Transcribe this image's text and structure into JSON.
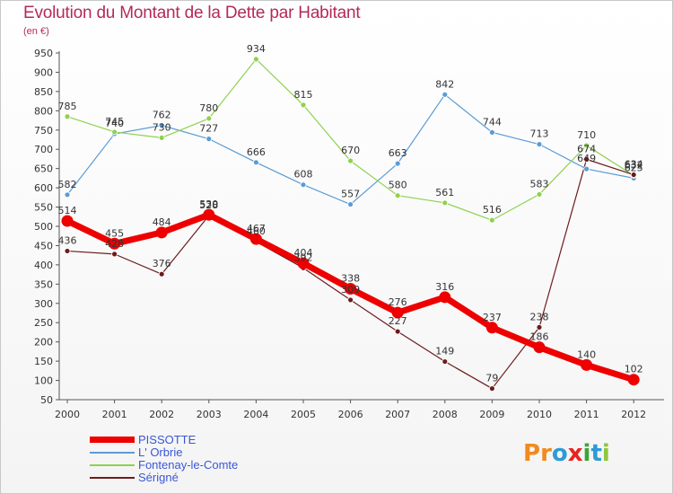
{
  "title": "Evolution du Montant de la Dette par Habitant",
  "unit": "(en €)",
  "logo_text": "Proxiti",
  "logo_letters": [
    {
      "ch": "P",
      "color": "#f28a1e"
    },
    {
      "ch": "r",
      "color": "#f28a1e"
    },
    {
      "ch": "o",
      "color": "#2e9bd6"
    },
    {
      "ch": "x",
      "color": "#e8231f"
    },
    {
      "ch": "i",
      "color": "#3aa63a"
    },
    {
      "ch": "t",
      "color": "#2e9bd6"
    },
    {
      "ch": "i",
      "color": "#8dc63f"
    }
  ],
  "chart_data": {
    "type": "line",
    "title": "Evolution du Montant de la Dette par Habitant",
    "ylabel": "(en €)",
    "xlabel": "",
    "categories": [
      "2000",
      "2001",
      "2002",
      "2003",
      "2004",
      "2005",
      "2006",
      "2007",
      "2008",
      "2009",
      "2010",
      "2011",
      "2012"
    ],
    "ylim": [
      50,
      950
    ],
    "yticks": [
      50,
      100,
      150,
      200,
      250,
      300,
      350,
      400,
      450,
      500,
      550,
      600,
      650,
      700,
      750,
      800,
      850,
      900,
      950
    ],
    "grid": false,
    "legend_position": "bottom-left",
    "series": [
      {
        "name": "PISSOTTE",
        "color": "#ee0000",
        "values": [
          514,
          455,
          484,
          530,
          467,
          404,
          338,
          276,
          316,
          237,
          186,
          140,
          102
        ],
        "labels": [
          "514",
          "455",
          "484",
          "530",
          "467",
          "404",
          "338",
          "276",
          "316",
          "237",
          "186",
          "140",
          "102"
        ]
      },
      {
        "name": "L' Orbrie",
        "color": "#5b9bd5",
        "values": [
          582,
          740,
          762,
          727,
          666,
          608,
          557,
          663,
          842,
          744,
          713,
          649,
          625
        ],
        "labels": [
          "582",
          "740",
          "762",
          "727",
          "666",
          "608",
          "557",
          "663",
          "842",
          "744",
          "713",
          "649",
          "625"
        ]
      },
      {
        "name": "Fontenay-le-Comte",
        "color": "#8fd14f",
        "values": [
          785,
          745,
          730,
          780,
          934,
          815,
          670,
          580,
          561,
          516,
          583,
          710,
          632
        ],
        "labels": [
          "785",
          "745",
          "730",
          "780",
          "934",
          "815",
          "670",
          "580",
          "561",
          "516",
          "583",
          "710",
          "632"
        ]
      },
      {
        "name": "Sérigné",
        "color": "#6b1c1c",
        "values": [
          436,
          428,
          376,
          528,
          460,
          392,
          309,
          227,
          149,
          79,
          238,
          674,
          634
        ],
        "labels": [
          "436",
          "428",
          "376",
          "528",
          "460",
          "392",
          "309",
          "227",
          "149",
          "79",
          "238",
          "674",
          "634"
        ]
      }
    ]
  }
}
